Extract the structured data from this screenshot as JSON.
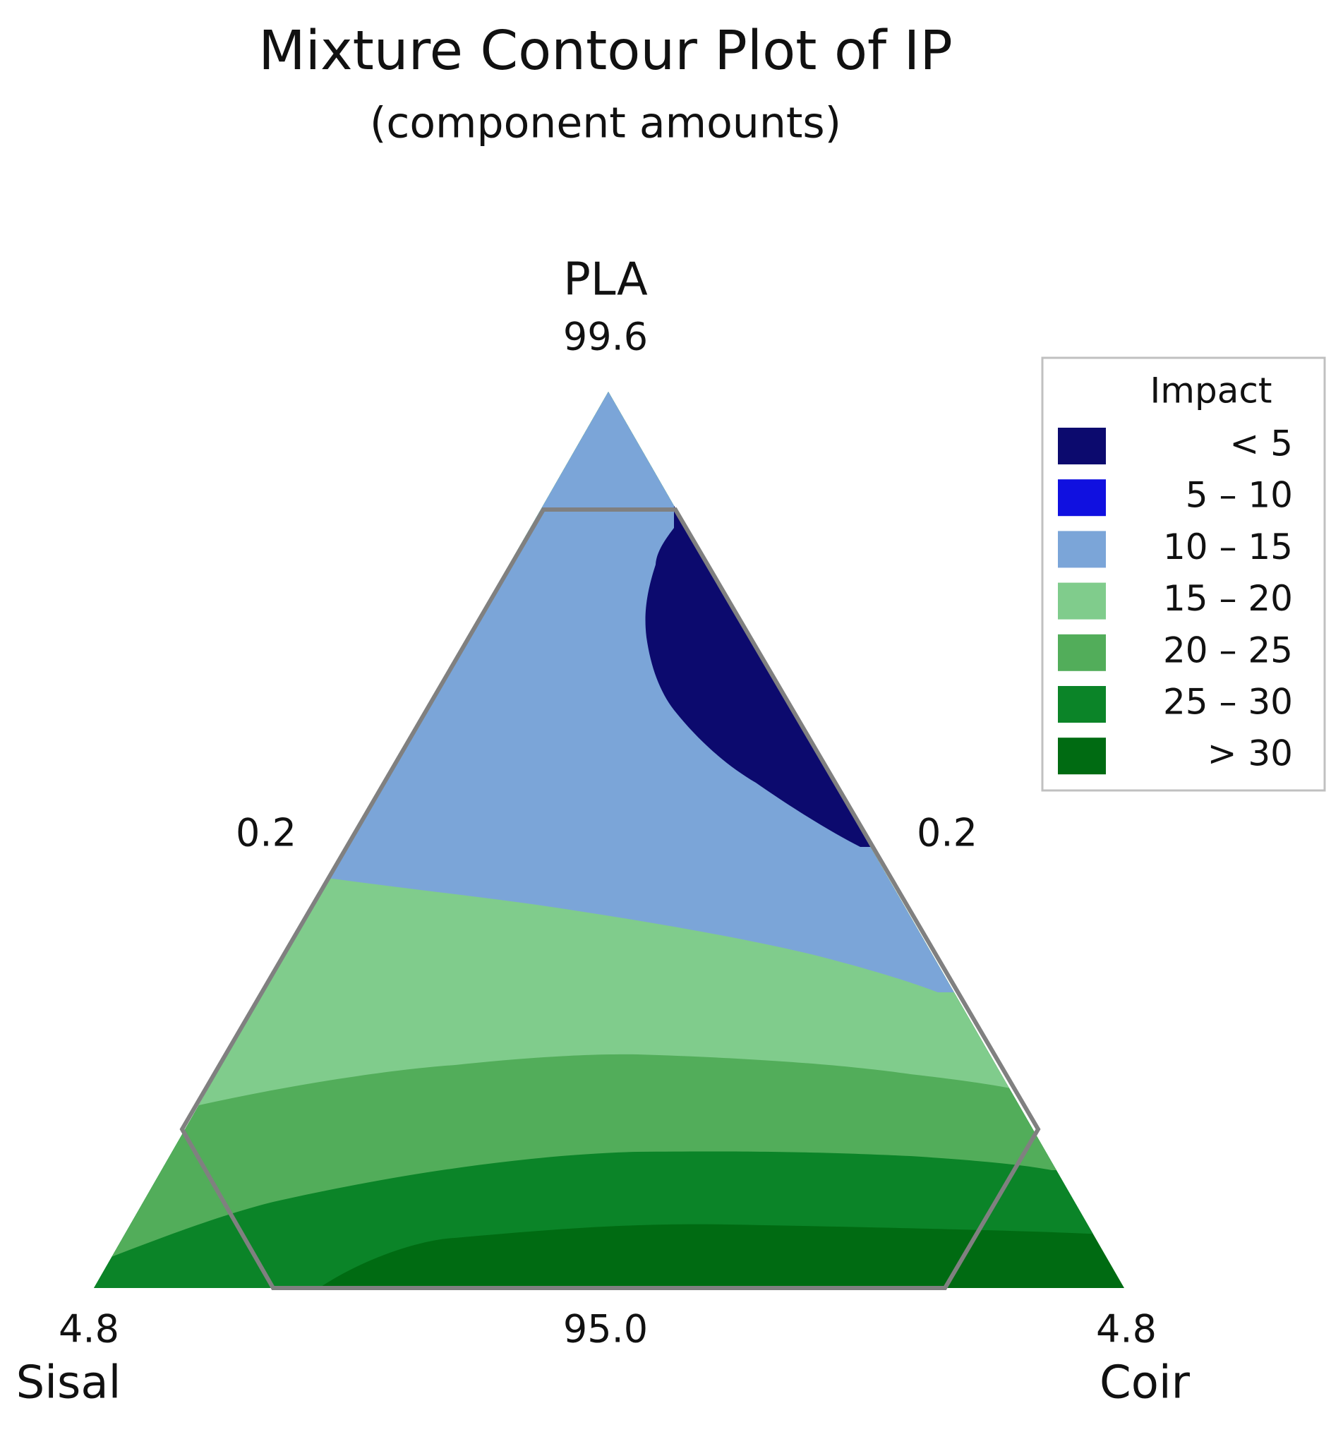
{
  "chart_data": {
    "type": "ternary_contour",
    "title": "Mixture Contour Plot of IP",
    "subtitle": "(component amounts)",
    "vertices": [
      {
        "name": "PLA",
        "value": "99.6"
      },
      {
        "name": "Sisal",
        "value": "4.8"
      },
      {
        "name": "Coir",
        "value": "4.8"
      }
    ],
    "edge_labels": [
      "0.2",
      "0.2",
      "95.0"
    ],
    "legend": {
      "title": "Impact",
      "position": "right",
      "entries": [
        {
          "label": "< 5",
          "color": "#0c0a6e"
        },
        {
          "label": "5 – 10",
          "color": "#1010e0"
        },
        {
          "label": "10 – 15",
          "color": "#7ba5d8"
        },
        {
          "label": "15 – 20",
          "color": "#80cc8c"
        },
        {
          "label": "20 – 25",
          "color": "#52ad5a"
        },
        {
          "label": "25 – 30",
          "color": "#0b8428"
        },
        {
          "label": "> 30",
          "color": "#006b12"
        }
      ]
    }
  }
}
